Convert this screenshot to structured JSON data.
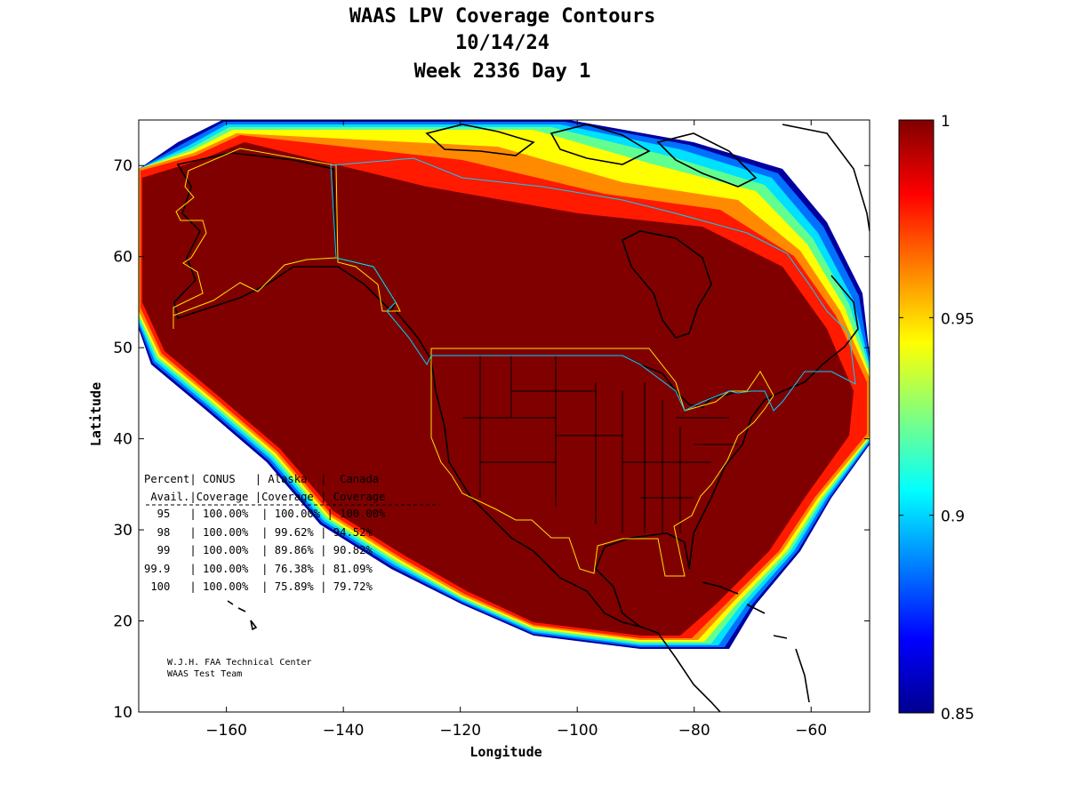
{
  "title": {
    "line1": "WAAS LPV Coverage Contours",
    "line2": "10/14/24",
    "line3": "Week 2336 Day 1"
  },
  "chart_data": {
    "type": "heatmap",
    "xlabel": "Longitude",
    "ylabel": "Latitude",
    "xlim": [
      -175,
      -50
    ],
    "ylim": [
      10,
      75
    ],
    "xticks": [
      -160,
      -140,
      -120,
      -100,
      -80,
      -60
    ],
    "yticks": [
      10,
      20,
      30,
      40,
      50,
      60,
      70
    ],
    "colorbar": {
      "range": [
        0.85,
        1
      ],
      "ticks": [
        {
          "value": 1,
          "label": "1"
        },
        {
          "value": 0.95,
          "label": "0.95"
        },
        {
          "value": 0.9,
          "label": "0.9"
        },
        {
          "value": 0.85,
          "label": "0.85"
        }
      ],
      "colormap": [
        "#00008f",
        "#0000ff",
        "#0080ff",
        "#00ffff",
        "#80ff80",
        "#ffff00",
        "#ff8000",
        "#ff0000",
        "#800000"
      ]
    },
    "table": {
      "header1": "Percent| CONUS   | Alaska  |  Canada",
      "header2": " Avail.|Coverage |Coverage | Coverage",
      "rows": [
        "  95   | 100.00%  | 100.00% | 100.00%",
        "  98   | 100.00%  | 99.62% | 94.52%",
        "  99   | 100.00%  | 89.86% | 90.82%",
        "99.9   | 100.00%  | 76.38% | 81.09%",
        " 100   | 100.00%  | 75.89% | 79.72%"
      ]
    },
    "credits": [
      "W.J.H. FAA Technical Center",
      "WAAS Test Team"
    ]
  }
}
